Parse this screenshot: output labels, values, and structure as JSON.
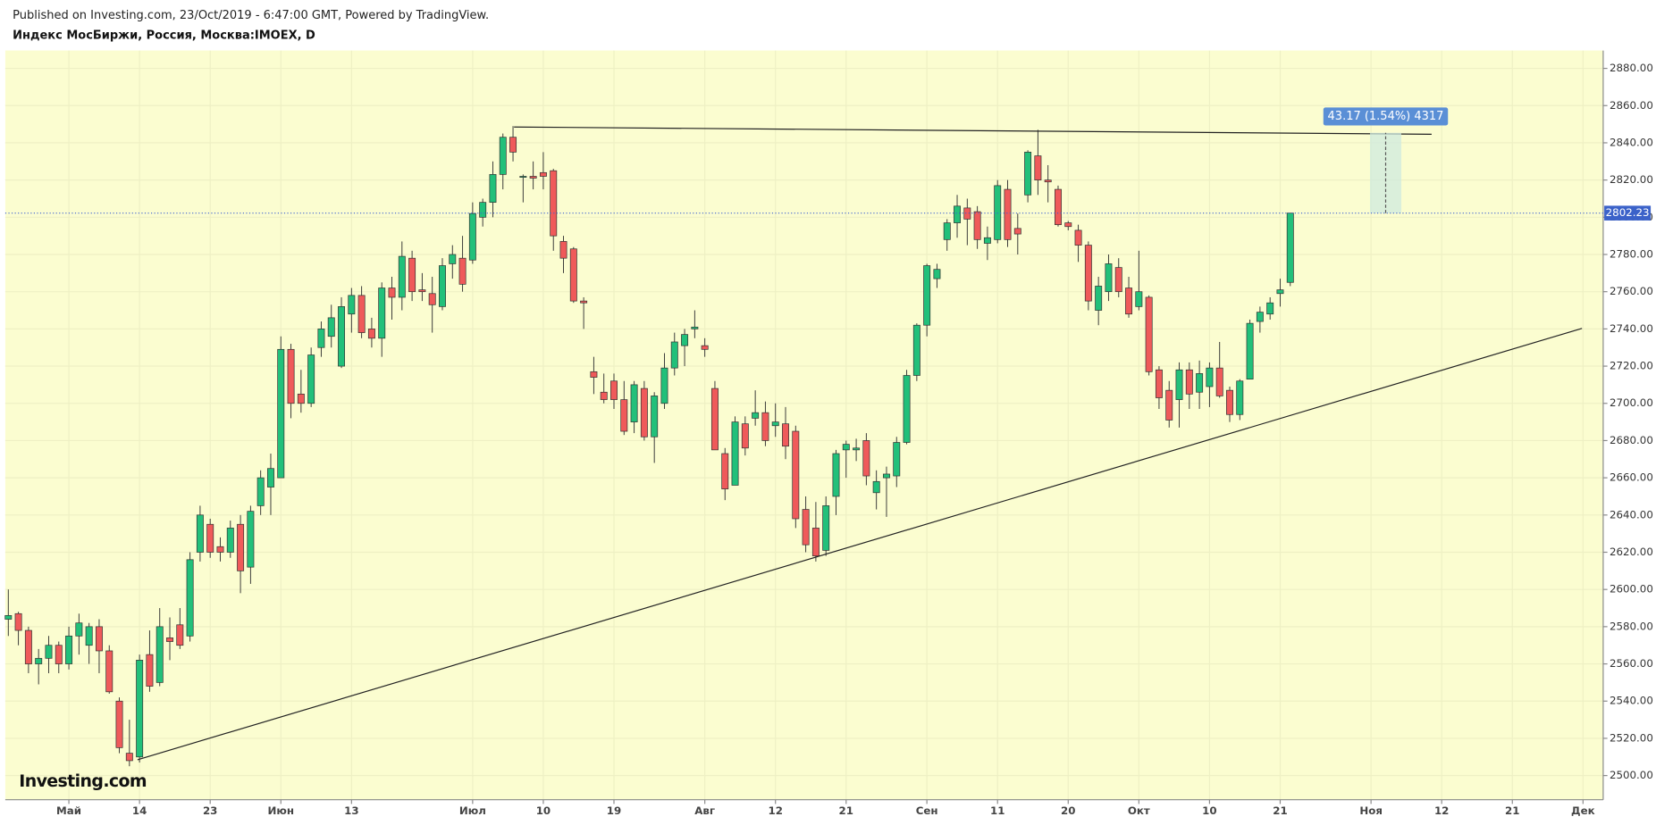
{
  "header": {
    "published": "Published on Investing.com, 23/Oct/2019 - 6:47:00 GMT, Powered by TradingView.",
    "symbol": "Индекс МосБиржи, Россия, Москва:IMOEX, D"
  },
  "logo": "Investing.com",
  "chart_data": {
    "type": "candlestick",
    "x": [
      0,
      1,
      2,
      3,
      4,
      5,
      6,
      7,
      8,
      9,
      10,
      11,
      12,
      13,
      14,
      15,
      16,
      17,
      18,
      19,
      20,
      21,
      22,
      23,
      24,
      25,
      26,
      27,
      28,
      29,
      30,
      31,
      32,
      33,
      34,
      35,
      36,
      37,
      38,
      39,
      40,
      41,
      42,
      43,
      44,
      45,
      46,
      47,
      48,
      49,
      50,
      51,
      52,
      53,
      54,
      55,
      56,
      57,
      58,
      59,
      60,
      61,
      62,
      63,
      64,
      65,
      66,
      67,
      68,
      69,
      70,
      71,
      72,
      73,
      74,
      75,
      76,
      77,
      78,
      79,
      80,
      81,
      82,
      83,
      84,
      85,
      86,
      87,
      88,
      89,
      90,
      91,
      92,
      93,
      94,
      95,
      96,
      97,
      98,
      99,
      100,
      101,
      102,
      103,
      104,
      105,
      106,
      107,
      108,
      109,
      110,
      111,
      112,
      113,
      114,
      115,
      116,
      117,
      118,
      119,
      120,
      121,
      122,
      123,
      124,
      125,
      126,
      127
    ],
    "open": [
      2584,
      2587,
      2578,
      2560,
      2563,
      2570,
      2560,
      2575,
      2570,
      2580,
      2567,
      2540,
      2512,
      2510,
      2565,
      2550,
      2574,
      2581,
      2575,
      2620,
      2635,
      2623,
      2620,
      2635,
      2612,
      2645,
      2655,
      2660,
      2729,
      2705,
      2700,
      2730,
      2736,
      2720,
      2748,
      2758,
      2740,
      2735,
      2762,
      2757,
      2778,
      2761,
      2759,
      2752,
      2775,
      2778,
      2777,
      2800,
      2808,
      2823,
      2843,
      2822,
      2822,
      2824,
      2825,
      2787,
      2783,
      2755,
      2717,
      2706,
      2712,
      2702,
      2690,
      2708,
      2682,
      2700,
      2719,
      2731,
      2740,
      2731,
      2708,
      2673,
      2656,
      2689,
      2692,
      2695,
      2688,
      2689,
      2685,
      2643,
      2633,
      2621,
      2650,
      2675,
      2675,
      2680,
      2652,
      2660,
      2661,
      2679,
      2715,
      2742,
      2767,
      2788,
      2797,
      2805,
      2803,
      2786,
      2788,
      2815,
      2794,
      2812,
      2833,
      2820,
      2815,
      2797,
      2793,
      2785,
      2750,
      2760,
      2773,
      2762,
      2752,
      2757,
      2718,
      2707,
      2702,
      2718,
      2706,
      2709,
      2719,
      2707,
      2694,
      2713,
      2744,
      2748,
      2759,
      2765
    ],
    "high": [
      2600,
      2588,
      2580,
      2568,
      2575,
      2572,
      2580,
      2587,
      2582,
      2584,
      2570,
      2542,
      2530,
      2565,
      2578,
      2590,
      2585,
      2590,
      2620,
      2645,
      2638,
      2628,
      2637,
      2640,
      2645,
      2664,
      2673,
      2736,
      2732,
      2718,
      2730,
      2744,
      2753,
      2757,
      2762,
      2763,
      2746,
      2765,
      2768,
      2787,
      2782,
      2770,
      2768,
      2778,
      2785,
      2790,
      2808,
      2810,
      2830,
      2845,
      2849,
      2823,
      2830,
      2835,
      2826,
      2790,
      2784,
      2757,
      2725,
      2716,
      2716,
      2712,
      2712,
      2712,
      2706,
      2727,
      2738,
      2740,
      2750,
      2735,
      2712,
      2676,
      2693,
      2693,
      2707,
      2701,
      2700,
      2698,
      2688,
      2650,
      2647,
      2650,
      2675,
      2680,
      2681,
      2684,
      2664,
      2666,
      2682,
      2718,
      2743,
      2775,
      2775,
      2799,
      2812,
      2810,
      2806,
      2795,
      2820,
      2820,
      2802,
      2836,
      2847,
      2828,
      2817,
      2798,
      2796,
      2787,
      2768,
      2780,
      2778,
      2768,
      2782,
      2758,
      2720,
      2712,
      2722,
      2722,
      2723,
      2722,
      2733,
      2709,
      2713,
      2745,
      2752,
      2757,
      2767,
      2802.23
    ],
    "low": [
      2575,
      2570,
      2555,
      2549,
      2555,
      2555,
      2557,
      2565,
      2560,
      2555,
      2544,
      2512,
      2505,
      2507,
      2545,
      2548,
      2562,
      2568,
      2572,
      2615,
      2617,
      2615,
      2617,
      2598,
      2603,
      2640,
      2640,
      2660,
      2692,
      2695,
      2698,
      2725,
      2730,
      2719,
      2738,
      2735,
      2730,
      2725,
      2745,
      2750,
      2755,
      2755,
      2738,
      2750,
      2767,
      2760,
      2775,
      2795,
      2800,
      2815,
      2830,
      2808,
      2815,
      2815,
      2782,
      2770,
      2754,
      2740,
      2705,
      2700,
      2697,
      2683,
      2684,
      2680,
      2668,
      2697,
      2715,
      2720,
      2735,
      2725,
      2675,
      2648,
      2656,
      2672,
      2688,
      2677,
      2682,
      2670,
      2633,
      2620,
      2615,
      2618,
      2640,
      2660,
      2669,
      2656,
      2643,
      2639,
      2655,
      2678,
      2712,
      2736,
      2762,
      2782,
      2789,
      2785,
      2783,
      2777,
      2786,
      2784,
      2780,
      2808,
      2812,
      2808,
      2795,
      2793,
      2776,
      2750,
      2742,
      2755,
      2757,
      2746,
      2750,
      2715,
      2697,
      2687,
      2687,
      2697,
      2697,
      2698,
      2703,
      2690,
      2691,
      2713,
      2738,
      2745,
      2752,
      2763
    ],
    "close": [
      2586,
      2578,
      2560,
      2563,
      2570,
      2560,
      2575,
      2582,
      2580,
      2567,
      2545,
      2515,
      2508,
      2562,
      2548,
      2580,
      2572,
      2570,
      2616,
      2640,
      2620,
      2620,
      2633,
      2610,
      2642,
      2660,
      2665,
      2729,
      2700,
      2700,
      2726,
      2740,
      2746,
      2752,
      2758,
      2738,
      2735,
      2762,
      2757,
      2779,
      2760,
      2760,
      2753,
      2774,
      2780,
      2764,
      2802,
      2808,
      2823,
      2843,
      2835,
      2822,
      2821,
      2822,
      2790,
      2778,
      2755,
      2754,
      2714,
      2702,
      2702,
      2685,
      2710,
      2682,
      2704,
      2719,
      2733,
      2737,
      2741,
      2729,
      2675,
      2654,
      2690,
      2676,
      2695,
      2680,
      2690,
      2677,
      2638,
      2624,
      2618,
      2645,
      2673,
      2678,
      2676,
      2661,
      2658,
      2662,
      2679,
      2715,
      2742,
      2774,
      2772,
      2797,
      2806,
      2799,
      2788,
      2789,
      2817,
      2788,
      2791,
      2835,
      2820,
      2819,
      2796,
      2795,
      2785,
      2755,
      2763,
      2775,
      2760,
      2748,
      2760,
      2717,
      2703,
      2691,
      2718,
      2705,
      2716,
      2719,
      2704,
      2694,
      2712,
      2743,
      2749,
      2754,
      2761,
      2802.23
    ],
    "up_color": "#22c07a",
    "down_color": "#ef5a5a",
    "xlim": [
      -0.3,
      158
    ],
    "xticks": [
      {
        "value": 6,
        "label": "Май"
      },
      {
        "value": 13,
        "label": "14"
      },
      {
        "value": 20,
        "label": "23"
      },
      {
        "value": 27,
        "label": "Июн"
      },
      {
        "value": 34,
        "label": "13"
      },
      {
        "value": 46,
        "label": "Июл"
      },
      {
        "value": 53,
        "label": "10"
      },
      {
        "value": 60,
        "label": "19"
      },
      {
        "value": 69,
        "label": "Авг"
      },
      {
        "value": 76,
        "label": "12"
      },
      {
        "value": 83,
        "label": "21"
      },
      {
        "value": 91,
        "label": "Сен"
      },
      {
        "value": 98,
        "label": "11"
      },
      {
        "value": 105,
        "label": "20"
      },
      {
        "value": 112,
        "label": "Окт"
      },
      {
        "value": 119,
        "label": "10"
      },
      {
        "value": 126,
        "label": "21"
      },
      {
        "value": 135,
        "label": "Ноя"
      },
      {
        "value": 142,
        "label": "12"
      },
      {
        "value": 149,
        "label": "21"
      },
      {
        "value": 156,
        "label": "Дек"
      }
    ],
    "ylim": [
      2487,
      2889.6
    ],
    "yticks": [
      {
        "value": 2500,
        "label": "2500.00"
      },
      {
        "value": 2520,
        "label": "2520.00"
      },
      {
        "value": 2540,
        "label": "2540.00"
      },
      {
        "value": 2560,
        "label": "2560.00"
      },
      {
        "value": 2580,
        "label": "2580.00"
      },
      {
        "value": 2600,
        "label": "2600.00"
      },
      {
        "value": 2620,
        "label": "2620.00"
      },
      {
        "value": 2640,
        "label": "2640.00"
      },
      {
        "value": 2660,
        "label": "2660.00"
      },
      {
        "value": 2680,
        "label": "2680.00"
      },
      {
        "value": 2700,
        "label": "2700.00"
      },
      {
        "value": 2720,
        "label": "2720.00"
      },
      {
        "value": 2740,
        "label": "2740.00"
      },
      {
        "value": 2760,
        "label": "2760.00"
      },
      {
        "value": 2780,
        "label": "2780.00"
      },
      {
        "value": 2800,
        "label": "2800.00"
      },
      {
        "value": 2820,
        "label": "2820.00"
      },
      {
        "value": 2840,
        "label": "2840.00"
      },
      {
        "value": 2860,
        "label": "2860.00"
      },
      {
        "value": 2880,
        "label": "2880.00"
      }
    ],
    "grid": true,
    "last_price": 2802.23,
    "trendlines": [
      {
        "x": [
          50.1,
          141
        ],
        "y": [
          2848.5,
          2844.6
        ]
      },
      {
        "x": [
          12.8,
          155.9
        ],
        "y": [
          2508.5,
          2740.3
        ]
      }
    ],
    "measure": {
      "label": "43.17 (1.54%) 4317",
      "x": [
        134.9,
        138
      ],
      "y": [
        2802.23,
        2845.4
      ]
    }
  }
}
